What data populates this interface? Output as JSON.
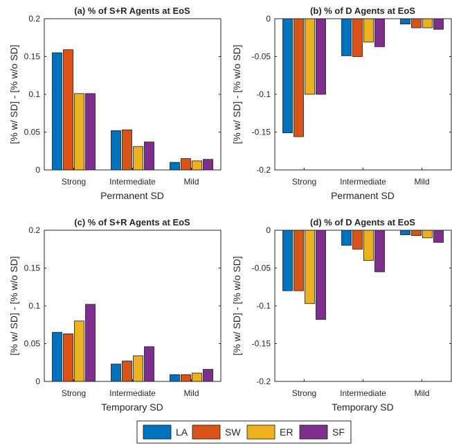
{
  "series_colors": [
    "#0072BD",
    "#D95319",
    "#EDB120",
    "#7E2F8E"
  ],
  "legend": {
    "entries": [
      {
        "label": "LA",
        "color": "#0072BD"
      },
      {
        "label": "SW",
        "color": "#D95319"
      },
      {
        "label": "ER",
        "color": "#EDB120"
      },
      {
        "label": "SF",
        "color": "#7E2F8E"
      }
    ],
    "placement": "bottom-center"
  },
  "chart_data": [
    {
      "type": "bar",
      "title": "(a) % of S+R Agents at EoS",
      "xlabel": "Permanent SD",
      "ylabel": "[% w/ SD] - [% w/o SD]",
      "categories": [
        "Strong",
        "Intermediate",
        "Mild"
      ],
      "ylim": [
        0,
        0.2
      ],
      "yticks": [
        0,
        0.05,
        0.1,
        0.15,
        0.2
      ],
      "ytick_labels": [
        "0",
        "0.05",
        "0.1",
        "0.15",
        "0.2"
      ],
      "series": [
        {
          "name": "LA",
          "values": [
            0.155,
            0.052,
            0.01
          ]
        },
        {
          "name": "SW",
          "values": [
            0.159,
            0.053,
            0.015
          ]
        },
        {
          "name": "ER",
          "values": [
            0.101,
            0.031,
            0.012
          ]
        },
        {
          "name": "SF",
          "values": [
            0.101,
            0.037,
            0.014
          ]
        }
      ]
    },
    {
      "type": "bar",
      "title": "(b) % of D Agents at EoS",
      "xlabel": "Permanent SD",
      "ylabel": "[% w/ SD] - [% w/o SD]",
      "categories": [
        "Strong",
        "Intermediate",
        "Mild"
      ],
      "ylim": [
        -0.2,
        0
      ],
      "yticks": [
        -0.2,
        -0.15,
        -0.1,
        -0.05,
        0
      ],
      "ytick_labels": [
        "-0.2",
        "-0.15",
        "-0.1",
        "-0.05",
        "0"
      ],
      "series": [
        {
          "name": "LA",
          "values": [
            -0.151,
            -0.049,
            -0.007
          ]
        },
        {
          "name": "SW",
          "values": [
            -0.156,
            -0.05,
            -0.012
          ]
        },
        {
          "name": "ER",
          "values": [
            -0.1,
            -0.031,
            -0.012
          ]
        },
        {
          "name": "SF",
          "values": [
            -0.1,
            -0.037,
            -0.014
          ]
        }
      ]
    },
    {
      "type": "bar",
      "title": "(c) % of S+R Agents at EoS",
      "xlabel": "Temporary SD",
      "ylabel": "[% w/ SD] - [% w/o SD]",
      "categories": [
        "Strong",
        "Intermediate",
        "Mild"
      ],
      "ylim": [
        0,
        0.2
      ],
      "yticks": [
        0,
        0.05,
        0.1,
        0.15,
        0.2
      ],
      "ytick_labels": [
        "0",
        "0.05",
        "0.1",
        "0.15",
        "0.2"
      ],
      "series": [
        {
          "name": "LA",
          "values": [
            0.065,
            0.023,
            0.009
          ]
        },
        {
          "name": "SW",
          "values": [
            0.063,
            0.027,
            0.009
          ]
        },
        {
          "name": "ER",
          "values": [
            0.08,
            0.034,
            0.011
          ]
        },
        {
          "name": "SF",
          "values": [
            0.102,
            0.046,
            0.016
          ]
        }
      ]
    },
    {
      "type": "bar",
      "title": "(d) % of D Agents at EoS",
      "xlabel": "Temporary SD",
      "ylabel": "[% w/ SD] - [% w/o SD]",
      "categories": [
        "Strong",
        "Intermediate",
        "Mild"
      ],
      "ylim": [
        -0.2,
        0
      ],
      "yticks": [
        -0.2,
        -0.15,
        -0.1,
        -0.05,
        0
      ],
      "ytick_labels": [
        "-0.2",
        "-0.15",
        "-0.1",
        "-0.05",
        "0"
      ],
      "series": [
        {
          "name": "LA",
          "values": [
            -0.08,
            -0.02,
            -0.006
          ]
        },
        {
          "name": "SW",
          "values": [
            -0.08,
            -0.025,
            -0.007
          ]
        },
        {
          "name": "ER",
          "values": [
            -0.097,
            -0.04,
            -0.01
          ]
        },
        {
          "name": "SF",
          "values": [
            -0.118,
            -0.055,
            -0.016
          ]
        }
      ]
    }
  ]
}
